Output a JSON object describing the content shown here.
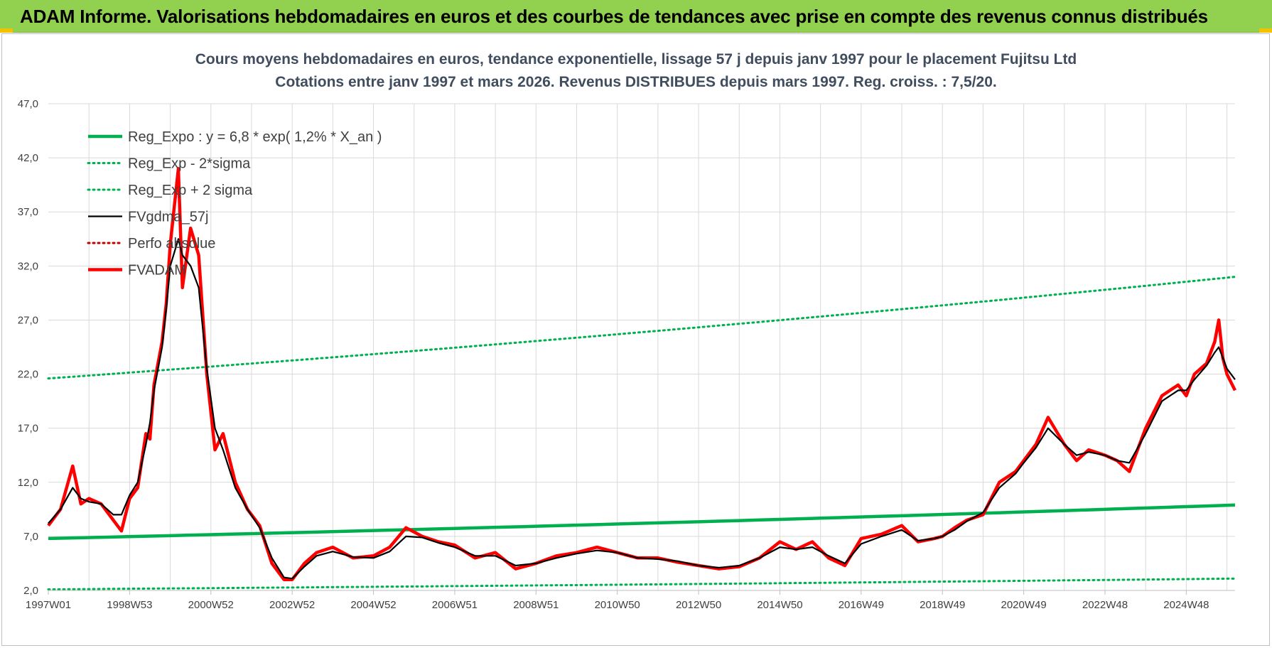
{
  "banner": {
    "title": "ADAM Informe. Valorisations hebdomadaires en euros et des courbes de tendances avec prise en compte des revenus connus distribués"
  },
  "colors": {
    "banner_bg": "#92d050",
    "trend_green": "#00b050",
    "smooth_black": "#000000",
    "price_red": "#ff0000",
    "grid": "#d9d9d9",
    "title_text": "#404d5e"
  },
  "chart_data": {
    "type": "line",
    "title": "Cours moyens hebdomadaires en euros, tendance exponentielle, lissage 57 j depuis janv 1997  pour le placement Fujitsu Ltd",
    "subtitle": "Cotations entre janv 1997 et mars 2026. Revenus DISTRIBUES depuis mars 1997.  Reg. croiss. : 7,5/20.",
    "xlabel": "",
    "ylabel": "",
    "x_range": [
      1997.0,
      2026.2
    ],
    "ylim": [
      2.0,
      47.0
    ],
    "y_ticks": [
      "2,0",
      "7,0",
      "12,0",
      "17,0",
      "22,0",
      "27,0",
      "32,0",
      "37,0",
      "42,0",
      "47,0"
    ],
    "x_ticks": [
      {
        "label": "1997W01",
        "t": 1997.0
      },
      {
        "label": "1998W53",
        "t": 1999.0
      },
      {
        "label": "2000W52",
        "t": 2001.0
      },
      {
        "label": "2002W52",
        "t": 2003.0
      },
      {
        "label": "2004W52",
        "t": 2005.0
      },
      {
        "label": "2006W51",
        "t": 2007.0
      },
      {
        "label": "2008W51",
        "t": 2009.0
      },
      {
        "label": "2010W50",
        "t": 2011.0
      },
      {
        "label": "2012W50",
        "t": 2013.0
      },
      {
        "label": "2014W50",
        "t": 2015.0
      },
      {
        "label": "2016W49",
        "t": 2017.0
      },
      {
        "label": "2018W49",
        "t": 2019.0
      },
      {
        "label": "2020W49",
        "t": 2021.0
      },
      {
        "label": "2022W48",
        "t": 2023.0
      },
      {
        "label": "2024W48",
        "t": 2025.0
      }
    ],
    "grid": true,
    "legend_position": "top-left",
    "legend": [
      {
        "label": "Reg_Expo : y = 6,8 * exp( 1,2% *  X_an )",
        "color": "#00b050",
        "style": "solid-thick"
      },
      {
        "label": "Reg_Exp - 2*sigma",
        "color": "#00b050",
        "style": "dotted"
      },
      {
        "label": "Reg_Exp + 2 sigma",
        "color": "#00b050",
        "style": "dotted"
      },
      {
        "label": "FVgdma_57j",
        "color": "#000000",
        "style": "solid"
      },
      {
        "label": "Perfo absolue",
        "color": "#c00000",
        "style": "dotted"
      },
      {
        "label": "FVADAM",
        "color": "#ff0000",
        "style": "solid-thick"
      }
    ],
    "series": [
      {
        "name": "Reg_Expo : y = 6,8 * exp( 1,2% *  X_an )",
        "x": [
          1997.0,
          2026.2
        ],
        "values": [
          6.8,
          9.9
        ]
      },
      {
        "name": "Reg_Exp - 2*sigma",
        "x": [
          1997.0,
          2026.2
        ],
        "values": [
          2.1,
          3.1
        ]
      },
      {
        "name": "Reg_Exp + 2 sigma",
        "x": [
          1997.0,
          2026.2
        ],
        "values": [
          21.6,
          31.0
        ]
      },
      {
        "name": "FVADAM",
        "x": [
          1997.0,
          1997.3,
          1997.6,
          1997.8,
          1998.0,
          1998.3,
          1998.6,
          1998.8,
          1999.0,
          1999.2,
          1999.4,
          1999.5,
          1999.6,
          1999.8,
          1999.9,
          2000.0,
          2000.2,
          2000.3,
          2000.5,
          2000.7,
          2000.9,
          2001.1,
          2001.3,
          2001.6,
          2001.9,
          2002.2,
          2002.5,
          2002.8,
          2003.0,
          2003.3,
          2003.6,
          2004.0,
          2004.5,
          2005.0,
          2005.4,
          2005.8,
          2006.2,
          2006.6,
          2007.0,
          2007.5,
          2008.0,
          2008.5,
          2009.0,
          2009.5,
          2010.0,
          2010.5,
          2011.0,
          2011.5,
          2012.0,
          2012.5,
          2013.0,
          2013.5,
          2014.0,
          2014.5,
          2015.0,
          2015.4,
          2015.8,
          2016.2,
          2016.6,
          2017.0,
          2017.5,
          2018.0,
          2018.4,
          2018.8,
          2019.0,
          2019.3,
          2019.6,
          2020.0,
          2020.4,
          2020.8,
          2021.0,
          2021.3,
          2021.6,
          2022.0,
          2022.3,
          2022.6,
          2023.0,
          2023.3,
          2023.6,
          2024.0,
          2024.4,
          2024.8,
          2025.0,
          2025.2,
          2025.5,
          2025.7,
          2025.8,
          2025.9,
          2026.0,
          2026.2
        ],
        "values": [
          8.0,
          9.5,
          13.5,
          10.0,
          10.5,
          10.0,
          8.5,
          7.5,
          10.5,
          11.5,
          16.5,
          16.0,
          21.0,
          25.0,
          28.5,
          34.0,
          41.0,
          30.0,
          35.5,
          33.0,
          22.0,
          15.0,
          16.5,
          12.0,
          9.5,
          8.0,
          4.5,
          3.0,
          3.0,
          4.5,
          5.5,
          6.0,
          5.0,
          5.2,
          6.0,
          7.8,
          7.0,
          6.5,
          6.2,
          5.0,
          5.5,
          4.0,
          4.5,
          5.2,
          5.5,
          6.0,
          5.5,
          5.0,
          5.0,
          4.6,
          4.3,
          4.0,
          4.2,
          5.0,
          6.5,
          5.8,
          6.5,
          5.0,
          4.3,
          6.8,
          7.2,
          8.0,
          6.5,
          6.8,
          7.0,
          7.8,
          8.5,
          9.0,
          12.0,
          13.0,
          14.0,
          15.5,
          18.0,
          15.5,
          14.0,
          15.0,
          14.5,
          14.0,
          13.0,
          17.0,
          20.0,
          21.0,
          20.0,
          22.0,
          23.0,
          25.0,
          27.0,
          23.5,
          22.0,
          20.5
        ]
      },
      {
        "name": "FVgdma_57j",
        "x": [
          1997.0,
          1997.3,
          1997.6,
          1997.8,
          1998.0,
          1998.3,
          1998.6,
          1998.8,
          1999.0,
          1999.2,
          1999.4,
          1999.5,
          1999.6,
          1999.8,
          1999.9,
          2000.0,
          2000.2,
          2000.3,
          2000.5,
          2000.7,
          2000.9,
          2001.1,
          2001.3,
          2001.6,
          2001.9,
          2002.2,
          2002.5,
          2002.8,
          2003.0,
          2003.3,
          2003.6,
          2004.0,
          2004.5,
          2005.0,
          2005.4,
          2005.8,
          2006.2,
          2006.6,
          2007.0,
          2007.5,
          2008.0,
          2008.5,
          2009.0,
          2009.5,
          2010.0,
          2010.5,
          2011.0,
          2011.5,
          2012.0,
          2012.5,
          2013.0,
          2013.5,
          2014.0,
          2014.5,
          2015.0,
          2015.4,
          2015.8,
          2016.2,
          2016.6,
          2017.0,
          2017.5,
          2018.0,
          2018.4,
          2018.8,
          2019.0,
          2019.3,
          2019.6,
          2020.0,
          2020.4,
          2020.8,
          2021.0,
          2021.3,
          2021.6,
          2022.0,
          2022.3,
          2022.6,
          2023.0,
          2023.3,
          2023.6,
          2024.0,
          2024.4,
          2024.8,
          2025.0,
          2025.2,
          2025.5,
          2025.7,
          2025.8,
          2025.9,
          2026.0,
          2026.2
        ],
        "values": [
          8.2,
          9.5,
          11.5,
          10.5,
          10.2,
          10.0,
          9.0,
          9.0,
          10.8,
          12.0,
          15.5,
          17.5,
          20.5,
          24.5,
          28.0,
          32.0,
          34.5,
          33.0,
          32.0,
          30.0,
          22.5,
          17.0,
          15.0,
          11.5,
          9.5,
          7.8,
          5.0,
          3.2,
          3.1,
          4.2,
          5.2,
          5.6,
          5.1,
          5.0,
          5.6,
          7.0,
          6.9,
          6.4,
          6.0,
          5.2,
          5.2,
          4.3,
          4.5,
          5.0,
          5.4,
          5.7,
          5.5,
          5.0,
          4.9,
          4.7,
          4.3,
          4.1,
          4.3,
          5.0,
          6.0,
          5.8,
          6.0,
          5.2,
          4.5,
          6.3,
          7.0,
          7.6,
          6.6,
          6.8,
          7.0,
          7.6,
          8.4,
          9.2,
          11.5,
          12.8,
          13.8,
          15.2,
          17.0,
          15.5,
          14.5,
          14.8,
          14.5,
          14.0,
          13.8,
          16.5,
          19.5,
          20.5,
          20.5,
          21.5,
          22.8,
          24.0,
          24.5,
          23.5,
          22.5,
          21.5
        ]
      }
    ]
  }
}
